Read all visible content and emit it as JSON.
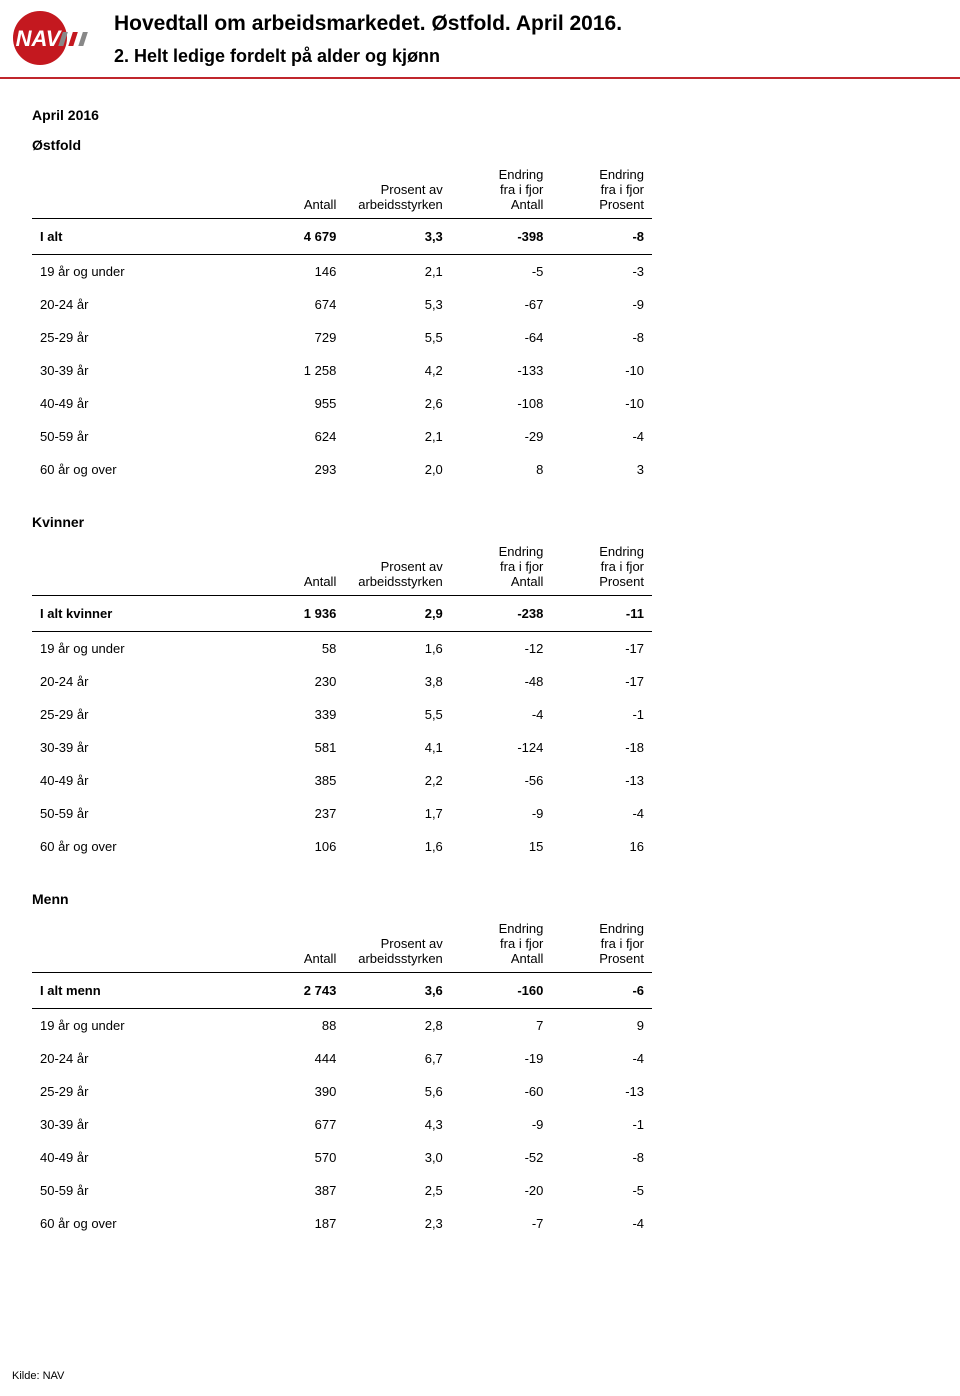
{
  "header": {
    "title": "Hovedtall om arbeidsmarkedet. Østfold. April 2016.",
    "subtitle": "2. Helt ledige fordelt på alder og kjønn",
    "logo": {
      "bg_color": "#c4181f",
      "text": "NAV",
      "text_color": "#ffffff"
    }
  },
  "period": "April 2016",
  "region": "Østfold",
  "columns": {
    "antall": "Antall",
    "prosent_av": "Prosent av arbeidsstyrken",
    "endring_antall": "Endring fra i fjor Antall",
    "endring_prosent": "Endring fra i fjor Prosent"
  },
  "sections": [
    {
      "heading": null,
      "total_label": "I alt",
      "total": [
        "4 679",
        "3,3",
        "-398",
        "-8"
      ],
      "rows": [
        {
          "label": "19 år og under",
          "v": [
            "146",
            "2,1",
            "-5",
            "-3"
          ]
        },
        {
          "label": "20-24 år",
          "v": [
            "674",
            "5,3",
            "-67",
            "-9"
          ]
        },
        {
          "label": "25-29 år",
          "v": [
            "729",
            "5,5",
            "-64",
            "-8"
          ]
        },
        {
          "label": "30-39 år",
          "v": [
            "1 258",
            "4,2",
            "-133",
            "-10"
          ]
        },
        {
          "label": "40-49 år",
          "v": [
            "955",
            "2,6",
            "-108",
            "-10"
          ]
        },
        {
          "label": "50-59 år",
          "v": [
            "624",
            "2,1",
            "-29",
            "-4"
          ]
        },
        {
          "label": "60 år og over",
          "v": [
            "293",
            "2,0",
            "8",
            "3"
          ]
        }
      ]
    },
    {
      "heading": "Kvinner",
      "total_label": "I alt kvinner",
      "total": [
        "1 936",
        "2,9",
        "-238",
        "-11"
      ],
      "rows": [
        {
          "label": "19 år og under",
          "v": [
            "58",
            "1,6",
            "-12",
            "-17"
          ]
        },
        {
          "label": "20-24 år",
          "v": [
            "230",
            "3,8",
            "-48",
            "-17"
          ]
        },
        {
          "label": "25-29 år",
          "v": [
            "339",
            "5,5",
            "-4",
            "-1"
          ]
        },
        {
          "label": "30-39 år",
          "v": [
            "581",
            "4,1",
            "-124",
            "-18"
          ]
        },
        {
          "label": "40-49 år",
          "v": [
            "385",
            "2,2",
            "-56",
            "-13"
          ]
        },
        {
          "label": "50-59 år",
          "v": [
            "237",
            "1,7",
            "-9",
            "-4"
          ]
        },
        {
          "label": "60 år og over",
          "v": [
            "106",
            "1,6",
            "15",
            "16"
          ]
        }
      ]
    },
    {
      "heading": "Menn",
      "total_label": "I alt menn",
      "total": [
        "2 743",
        "3,6",
        "-160",
        "-6"
      ],
      "rows": [
        {
          "label": "19 år og under",
          "v": [
            "88",
            "2,8",
            "7",
            "9"
          ]
        },
        {
          "label": "20-24 år",
          "v": [
            "444",
            "6,7",
            "-19",
            "-4"
          ]
        },
        {
          "label": "25-29 år",
          "v": [
            "390",
            "5,6",
            "-60",
            "-13"
          ]
        },
        {
          "label": "30-39 år",
          "v": [
            "677",
            "4,3",
            "-9",
            "-1"
          ]
        },
        {
          "label": "40-49 år",
          "v": [
            "570",
            "3,0",
            "-52",
            "-8"
          ]
        },
        {
          "label": "50-59 år",
          "v": [
            "387",
            "2,5",
            "-20",
            "-5"
          ]
        },
        {
          "label": "60 år og over",
          "v": [
            "187",
            "2,3",
            "-7",
            "-4"
          ]
        }
      ]
    }
  ],
  "footer": "Kilde: NAV"
}
